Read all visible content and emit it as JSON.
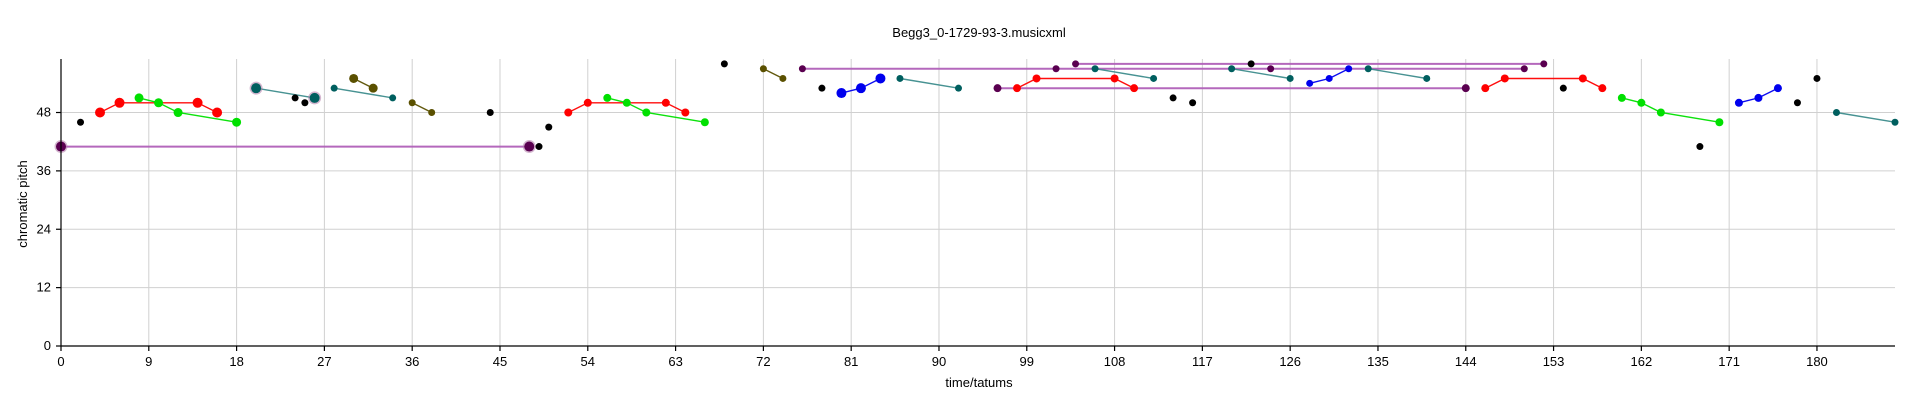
{
  "chart_data": {
    "type": "scatter",
    "title": "Begg3_0-1729-93-3.musicxml",
    "xlabel": "time/tatums",
    "ylabel": "chromatic pitch",
    "xlim": [
      0,
      188
    ],
    "ylim": [
      0,
      59
    ],
    "xticks": [
      0,
      9,
      18,
      27,
      36,
      45,
      54,
      63,
      72,
      81,
      90,
      99,
      108,
      117,
      126,
      135,
      144,
      153,
      162,
      171,
      180
    ],
    "yticks": [
      0,
      12,
      24,
      36,
      48
    ],
    "grid": true,
    "colors": {
      "red": "#ff0000",
      "green": "#00e000",
      "teal": "#005f5f",
      "olive": "#5a5000",
      "purple": "#5a0050",
      "blue": "#0000ee",
      "black": "#000000",
      "lavender": "#b060b8",
      "sea": "#3d8c8c"
    },
    "points": [
      {
        "x": 0,
        "y": 41,
        "color": "purple",
        "size": 5
      },
      {
        "x": 2,
        "y": 46,
        "color": "black",
        "size": 3.5
      },
      {
        "x": 4,
        "y": 48,
        "color": "red",
        "size": 5
      },
      {
        "x": 6,
        "y": 50,
        "color": "red",
        "size": 5
      },
      {
        "x": 8,
        "y": 51,
        "color": "green",
        "size": 4.5
      },
      {
        "x": 10,
        "y": 50,
        "color": "green",
        "size": 4.5
      },
      {
        "x": 12,
        "y": 48,
        "color": "green",
        "size": 4.5
      },
      {
        "x": 14,
        "y": 50,
        "color": "red",
        "size": 5
      },
      {
        "x": 16,
        "y": 48,
        "color": "red",
        "size": 5
      },
      {
        "x": 18,
        "y": 46,
        "color": "green",
        "size": 4.5
      },
      {
        "x": 20,
        "y": 53,
        "color": "teal",
        "size": 5
      },
      {
        "x": 24,
        "y": 51,
        "color": "black",
        "size": 3.5
      },
      {
        "x": 25,
        "y": 50,
        "color": "black",
        "size": 3.5
      },
      {
        "x": 26,
        "y": 51,
        "color": "teal",
        "size": 5
      },
      {
        "x": 28,
        "y": 53,
        "color": "teal",
        "size": 3.5
      },
      {
        "x": 30,
        "y": 55,
        "color": "olive",
        "size": 4.5
      },
      {
        "x": 32,
        "y": 53,
        "color": "olive",
        "size": 4.5
      },
      {
        "x": 34,
        "y": 51,
        "color": "teal",
        "size": 3.5
      },
      {
        "x": 36,
        "y": 50,
        "color": "olive",
        "size": 3.5
      },
      {
        "x": 38,
        "y": 48,
        "color": "olive",
        "size": 3.5
      },
      {
        "x": 44,
        "y": 48,
        "color": "black",
        "size": 3.5
      },
      {
        "x": 48,
        "y": 41,
        "color": "purple",
        "size": 5
      },
      {
        "x": 49,
        "y": 41,
        "color": "black",
        "size": 3.5
      },
      {
        "x": 50,
        "y": 45,
        "color": "black",
        "size": 3.5
      },
      {
        "x": 52,
        "y": 48,
        "color": "red",
        "size": 4
      },
      {
        "x": 54,
        "y": 50,
        "color": "red",
        "size": 4
      },
      {
        "x": 56,
        "y": 51,
        "color": "green",
        "size": 4
      },
      {
        "x": 58,
        "y": 50,
        "color": "green",
        "size": 4
      },
      {
        "x": 60,
        "y": 48,
        "color": "green",
        "size": 4
      },
      {
        "x": 62,
        "y": 50,
        "color": "red",
        "size": 4
      },
      {
        "x": 64,
        "y": 48,
        "color": "red",
        "size": 4
      },
      {
        "x": 66,
        "y": 46,
        "color": "green",
        "size": 4
      },
      {
        "x": 68,
        "y": 58,
        "color": "black",
        "size": 3.5
      },
      {
        "x": 72,
        "y": 57,
        "color": "olive",
        "size": 3.5
      },
      {
        "x": 74,
        "y": 55,
        "color": "olive",
        "size": 3.5
      },
      {
        "x": 76,
        "y": 57,
        "color": "purple",
        "size": 3.5
      },
      {
        "x": 78,
        "y": 53,
        "color": "black",
        "size": 3.5
      },
      {
        "x": 80,
        "y": 52,
        "color": "blue",
        "size": 5
      },
      {
        "x": 82,
        "y": 53,
        "color": "blue",
        "size": 5
      },
      {
        "x": 84,
        "y": 55,
        "color": "blue",
        "size": 5
      },
      {
        "x": 86,
        "y": 55,
        "color": "teal",
        "size": 3.5
      },
      {
        "x": 92,
        "y": 53,
        "color": "teal",
        "size": 3.5
      },
      {
        "x": 96,
        "y": 53,
        "color": "purple",
        "size": 4
      },
      {
        "x": 98,
        "y": 53,
        "color": "red",
        "size": 4
      },
      {
        "x": 100,
        "y": 55,
        "color": "red",
        "size": 4
      },
      {
        "x": 102,
        "y": 57,
        "color": "purple",
        "size": 3.5
      },
      {
        "x": 104,
        "y": 58,
        "color": "purple",
        "size": 3.5
      },
      {
        "x": 106,
        "y": 57,
        "color": "teal",
        "size": 3.5
      },
      {
        "x": 108,
        "y": 55,
        "color": "red",
        "size": 4
      },
      {
        "x": 110,
        "y": 53,
        "color": "red",
        "size": 4
      },
      {
        "x": 112,
        "y": 55,
        "color": "teal",
        "size": 3.5
      },
      {
        "x": 114,
        "y": 51,
        "color": "black",
        "size": 3.5
      },
      {
        "x": 116,
        "y": 50,
        "color": "black",
        "size": 3.5
      },
      {
        "x": 120,
        "y": 57,
        "color": "teal",
        "size": 3.5
      },
      {
        "x": 122,
        "y": 58,
        "color": "black",
        "size": 3.5
      },
      {
        "x": 124,
        "y": 57,
        "color": "purple",
        "size": 3.5
      },
      {
        "x": 126,
        "y": 55,
        "color": "teal",
        "size": 3.5
      },
      {
        "x": 128,
        "y": 54,
        "color": "blue",
        "size": 3.5
      },
      {
        "x": 130,
        "y": 55,
        "color": "blue",
        "size": 3.5
      },
      {
        "x": 132,
        "y": 57,
        "color": "blue",
        "size": 3.5
      },
      {
        "x": 134,
        "y": 57,
        "color": "teal",
        "size": 3.5
      },
      {
        "x": 140,
        "y": 55,
        "color": "teal",
        "size": 3.5
      },
      {
        "x": 144,
        "y": 53,
        "color": "purple",
        "size": 4
      },
      {
        "x": 146,
        "y": 53,
        "color": "red",
        "size": 4
      },
      {
        "x": 148,
        "y": 55,
        "color": "red",
        "size": 4
      },
      {
        "x": 150,
        "y": 57,
        "color": "purple",
        "size": 3.5
      },
      {
        "x": 152,
        "y": 58,
        "color": "purple",
        "size": 3.5
      },
      {
        "x": 154,
        "y": 53,
        "color": "black",
        "size": 3.5
      },
      {
        "x": 156,
        "y": 55,
        "color": "red",
        "size": 4
      },
      {
        "x": 158,
        "y": 53,
        "color": "red",
        "size": 4
      },
      {
        "x": 160,
        "y": 51,
        "color": "green",
        "size": 4
      },
      {
        "x": 162,
        "y": 50,
        "color": "green",
        "size": 4
      },
      {
        "x": 164,
        "y": 48,
        "color": "green",
        "size": 4
      },
      {
        "x": 168,
        "y": 41,
        "color": "black",
        "size": 3.5
      },
      {
        "x": 170,
        "y": 46,
        "color": "green",
        "size": 4
      },
      {
        "x": 172,
        "y": 50,
        "color": "blue",
        "size": 4
      },
      {
        "x": 174,
        "y": 51,
        "color": "blue",
        "size": 4
      },
      {
        "x": 176,
        "y": 53,
        "color": "blue",
        "size": 4
      },
      {
        "x": 178,
        "y": 50,
        "color": "black",
        "size": 3.5
      },
      {
        "x": 180,
        "y": 55,
        "color": "black",
        "size": 3.5
      },
      {
        "x": 182,
        "y": 48,
        "color": "teal",
        "size": 3.5
      },
      {
        "x": 188,
        "y": 46,
        "color": "teal",
        "size": 3.5
      }
    ],
    "segments": [
      {
        "color": "lavender",
        "points": [
          [
            0,
            41
          ],
          [
            48,
            41
          ]
        ]
      },
      {
        "color": "red",
        "points": [
          [
            4,
            48
          ],
          [
            6,
            50
          ],
          [
            14,
            50
          ],
          [
            16,
            48
          ]
        ]
      },
      {
        "color": "green",
        "points": [
          [
            8,
            51
          ],
          [
            10,
            50
          ],
          [
            12,
            48
          ],
          [
            18,
            46
          ]
        ]
      },
      {
        "color": "sea",
        "points": [
          [
            20,
            53
          ],
          [
            26,
            51
          ]
        ]
      },
      {
        "color": "sea",
        "points": [
          [
            28,
            53
          ],
          [
            34,
            51
          ]
        ]
      },
      {
        "color": "olive",
        "points": [
          [
            30,
            55
          ],
          [
            32,
            53
          ]
        ]
      },
      {
        "color": "olive",
        "points": [
          [
            36,
            50
          ],
          [
            38,
            48
          ]
        ]
      },
      {
        "color": "red",
        "points": [
          [
            52,
            48
          ],
          [
            54,
            50
          ],
          [
            62,
            50
          ],
          [
            64,
            48
          ]
        ]
      },
      {
        "color": "green",
        "points": [
          [
            56,
            51
          ],
          [
            58,
            50
          ],
          [
            60,
            48
          ],
          [
            66,
            46
          ]
        ]
      },
      {
        "color": "olive",
        "points": [
          [
            72,
            57
          ],
          [
            74,
            55
          ]
        ]
      },
      {
        "color": "lavender",
        "points": [
          [
            76,
            57
          ],
          [
            150,
            57
          ]
        ]
      },
      {
        "color": "blue",
        "points": [
          [
            80,
            52
          ],
          [
            82,
            53
          ],
          [
            84,
            55
          ]
        ]
      },
      {
        "color": "sea",
        "points": [
          [
            86,
            55
          ],
          [
            92,
            53
          ]
        ]
      },
      {
        "color": "lavender",
        "points": [
          [
            96,
            53
          ],
          [
            144,
            53
          ]
        ]
      },
      {
        "color": "red",
        "points": [
          [
            98,
            53
          ],
          [
            100,
            55
          ],
          [
            108,
            55
          ],
          [
            110,
            53
          ]
        ]
      },
      {
        "color": "lavender",
        "points": [
          [
            104,
            58
          ],
          [
            152,
            58
          ]
        ]
      },
      {
        "color": "sea",
        "points": [
          [
            106,
            57
          ],
          [
            112,
            55
          ]
        ]
      },
      {
        "color": "sea",
        "points": [
          [
            120,
            57
          ],
          [
            126,
            55
          ]
        ]
      },
      {
        "color": "blue",
        "points": [
          [
            128,
            54
          ],
          [
            130,
            55
          ],
          [
            132,
            57
          ]
        ]
      },
      {
        "color": "sea",
        "points": [
          [
            134,
            57
          ],
          [
            140,
            55
          ]
        ]
      },
      {
        "color": "red",
        "points": [
          [
            146,
            53
          ],
          [
            148,
            55
          ],
          [
            156,
            55
          ],
          [
            158,
            53
          ]
        ]
      },
      {
        "color": "green",
        "points": [
          [
            160,
            51
          ],
          [
            162,
            50
          ],
          [
            164,
            48
          ],
          [
            170,
            46
          ]
        ]
      },
      {
        "color": "blue",
        "points": [
          [
            172,
            50
          ],
          [
            174,
            51
          ],
          [
            176,
            53
          ]
        ]
      },
      {
        "color": "sea",
        "points": [
          [
            182,
            48
          ],
          [
            188,
            46
          ]
        ]
      }
    ]
  }
}
